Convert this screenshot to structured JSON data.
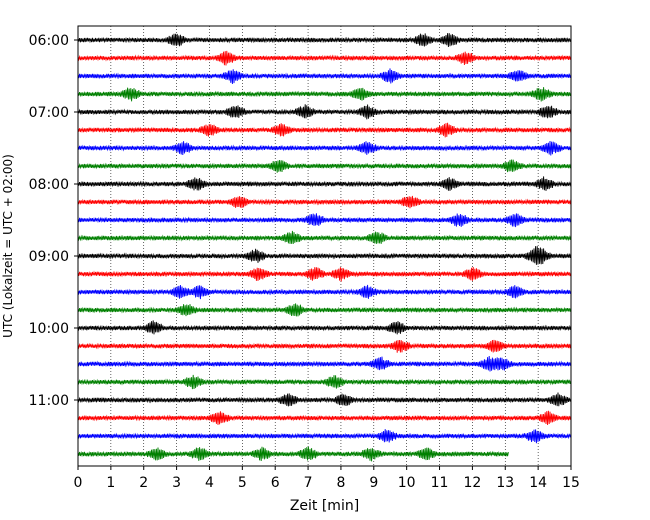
{
  "chart_data": {
    "type": "line",
    "title": "",
    "xlabel": "Zeit  [min]",
    "ylabel": "UTC (Lokalzeit = UTC + 02:00)",
    "xlim": [
      0,
      15
    ],
    "x_ticks": [
      0,
      1,
      2,
      3,
      4,
      5,
      6,
      7,
      8,
      9,
      10,
      11,
      12,
      13,
      14,
      15
    ],
    "y_tick_labels": [
      "06:00",
      "07:00",
      "08:00",
      "09:00",
      "10:00",
      "11:00"
    ],
    "grid": "vertical dotted",
    "trace_interval_min": 15,
    "trace_colors": [
      "#000000",
      "#ff0000",
      "#0000ff",
      "#008000"
    ],
    "traces": [
      {
        "start": "05:45",
        "duration_min": 15,
        "color": "#000000",
        "events_min": [
          3.0,
          10.5,
          11.3
        ]
      },
      {
        "start": "06:00",
        "duration_min": 15,
        "color": "#ff0000",
        "events_min": [
          4.5,
          11.8
        ]
      },
      {
        "start": "06:15",
        "duration_min": 15,
        "color": "#0000ff",
        "events_min": [
          4.7,
          9.5,
          13.4
        ]
      },
      {
        "start": "06:30",
        "duration_min": 15,
        "color": "#008000",
        "events_min": [
          1.6,
          8.6,
          14.1
        ]
      },
      {
        "start": "06:45",
        "duration_min": 15,
        "color": "#000000",
        "events_min": [
          4.8,
          6.9,
          8.8,
          14.3
        ]
      },
      {
        "start": "07:00",
        "duration_min": 15,
        "color": "#ff0000",
        "events_min": [
          4.0,
          6.2,
          11.2
        ]
      },
      {
        "start": "07:15",
        "duration_min": 15,
        "color": "#0000ff",
        "events_min": [
          3.2,
          8.8,
          14.4
        ]
      },
      {
        "start": "07:30",
        "duration_min": 15,
        "color": "#008000",
        "events_min": [
          6.1,
          13.2
        ]
      },
      {
        "start": "07:45",
        "duration_min": 15,
        "color": "#000000",
        "events_min": [
          3.6,
          11.3,
          14.2
        ]
      },
      {
        "start": "08:00",
        "duration_min": 15,
        "color": "#ff0000",
        "events_min": [
          4.9,
          10.1
        ]
      },
      {
        "start": "08:15",
        "duration_min": 15,
        "color": "#0000ff",
        "events_min": [
          7.2,
          11.6,
          13.3
        ]
      },
      {
        "start": "08:30",
        "duration_min": 15,
        "color": "#008000",
        "events_min": [
          6.5,
          9.1
        ]
      },
      {
        "start": "08:45",
        "duration_min": 15,
        "color": "#000000",
        "events_min": [
          5.4,
          13.9,
          14.1
        ]
      },
      {
        "start": "09:00",
        "duration_min": 15,
        "color": "#ff0000",
        "events_min": [
          5.5,
          7.2,
          8.0,
          12.0
        ]
      },
      {
        "start": "09:15",
        "duration_min": 15,
        "color": "#0000ff",
        "events_min": [
          3.1,
          3.7,
          8.8,
          13.3
        ]
      },
      {
        "start": "09:30",
        "duration_min": 15,
        "color": "#008000",
        "events_min": [
          3.3,
          6.6
        ]
      },
      {
        "start": "09:45",
        "duration_min": 15,
        "color": "#000000",
        "events_min": [
          2.3,
          9.7
        ]
      },
      {
        "start": "10:00",
        "duration_min": 15,
        "color": "#ff0000",
        "events_min": [
          9.8,
          12.7
        ]
      },
      {
        "start": "10:15",
        "duration_min": 15,
        "color": "#0000ff",
        "events_min": [
          9.2,
          12.5,
          12.9
        ]
      },
      {
        "start": "10:30",
        "duration_min": 15,
        "color": "#008000",
        "events_min": [
          3.5,
          7.8
        ]
      },
      {
        "start": "10:45",
        "duration_min": 15,
        "color": "#000000",
        "events_min": [
          6.4,
          8.1,
          14.6
        ]
      },
      {
        "start": "11:00",
        "duration_min": 15,
        "color": "#ff0000",
        "events_min": [
          4.3,
          14.3
        ]
      },
      {
        "start": "11:15",
        "duration_min": 15,
        "color": "#0000ff",
        "events_min": [
          9.4,
          13.9
        ]
      },
      {
        "start": "11:30",
        "duration_min": 13.1,
        "color": "#008000",
        "events_min": [
          2.4,
          3.7,
          5.6,
          7.0,
          8.9,
          10.6
        ]
      }
    ]
  }
}
